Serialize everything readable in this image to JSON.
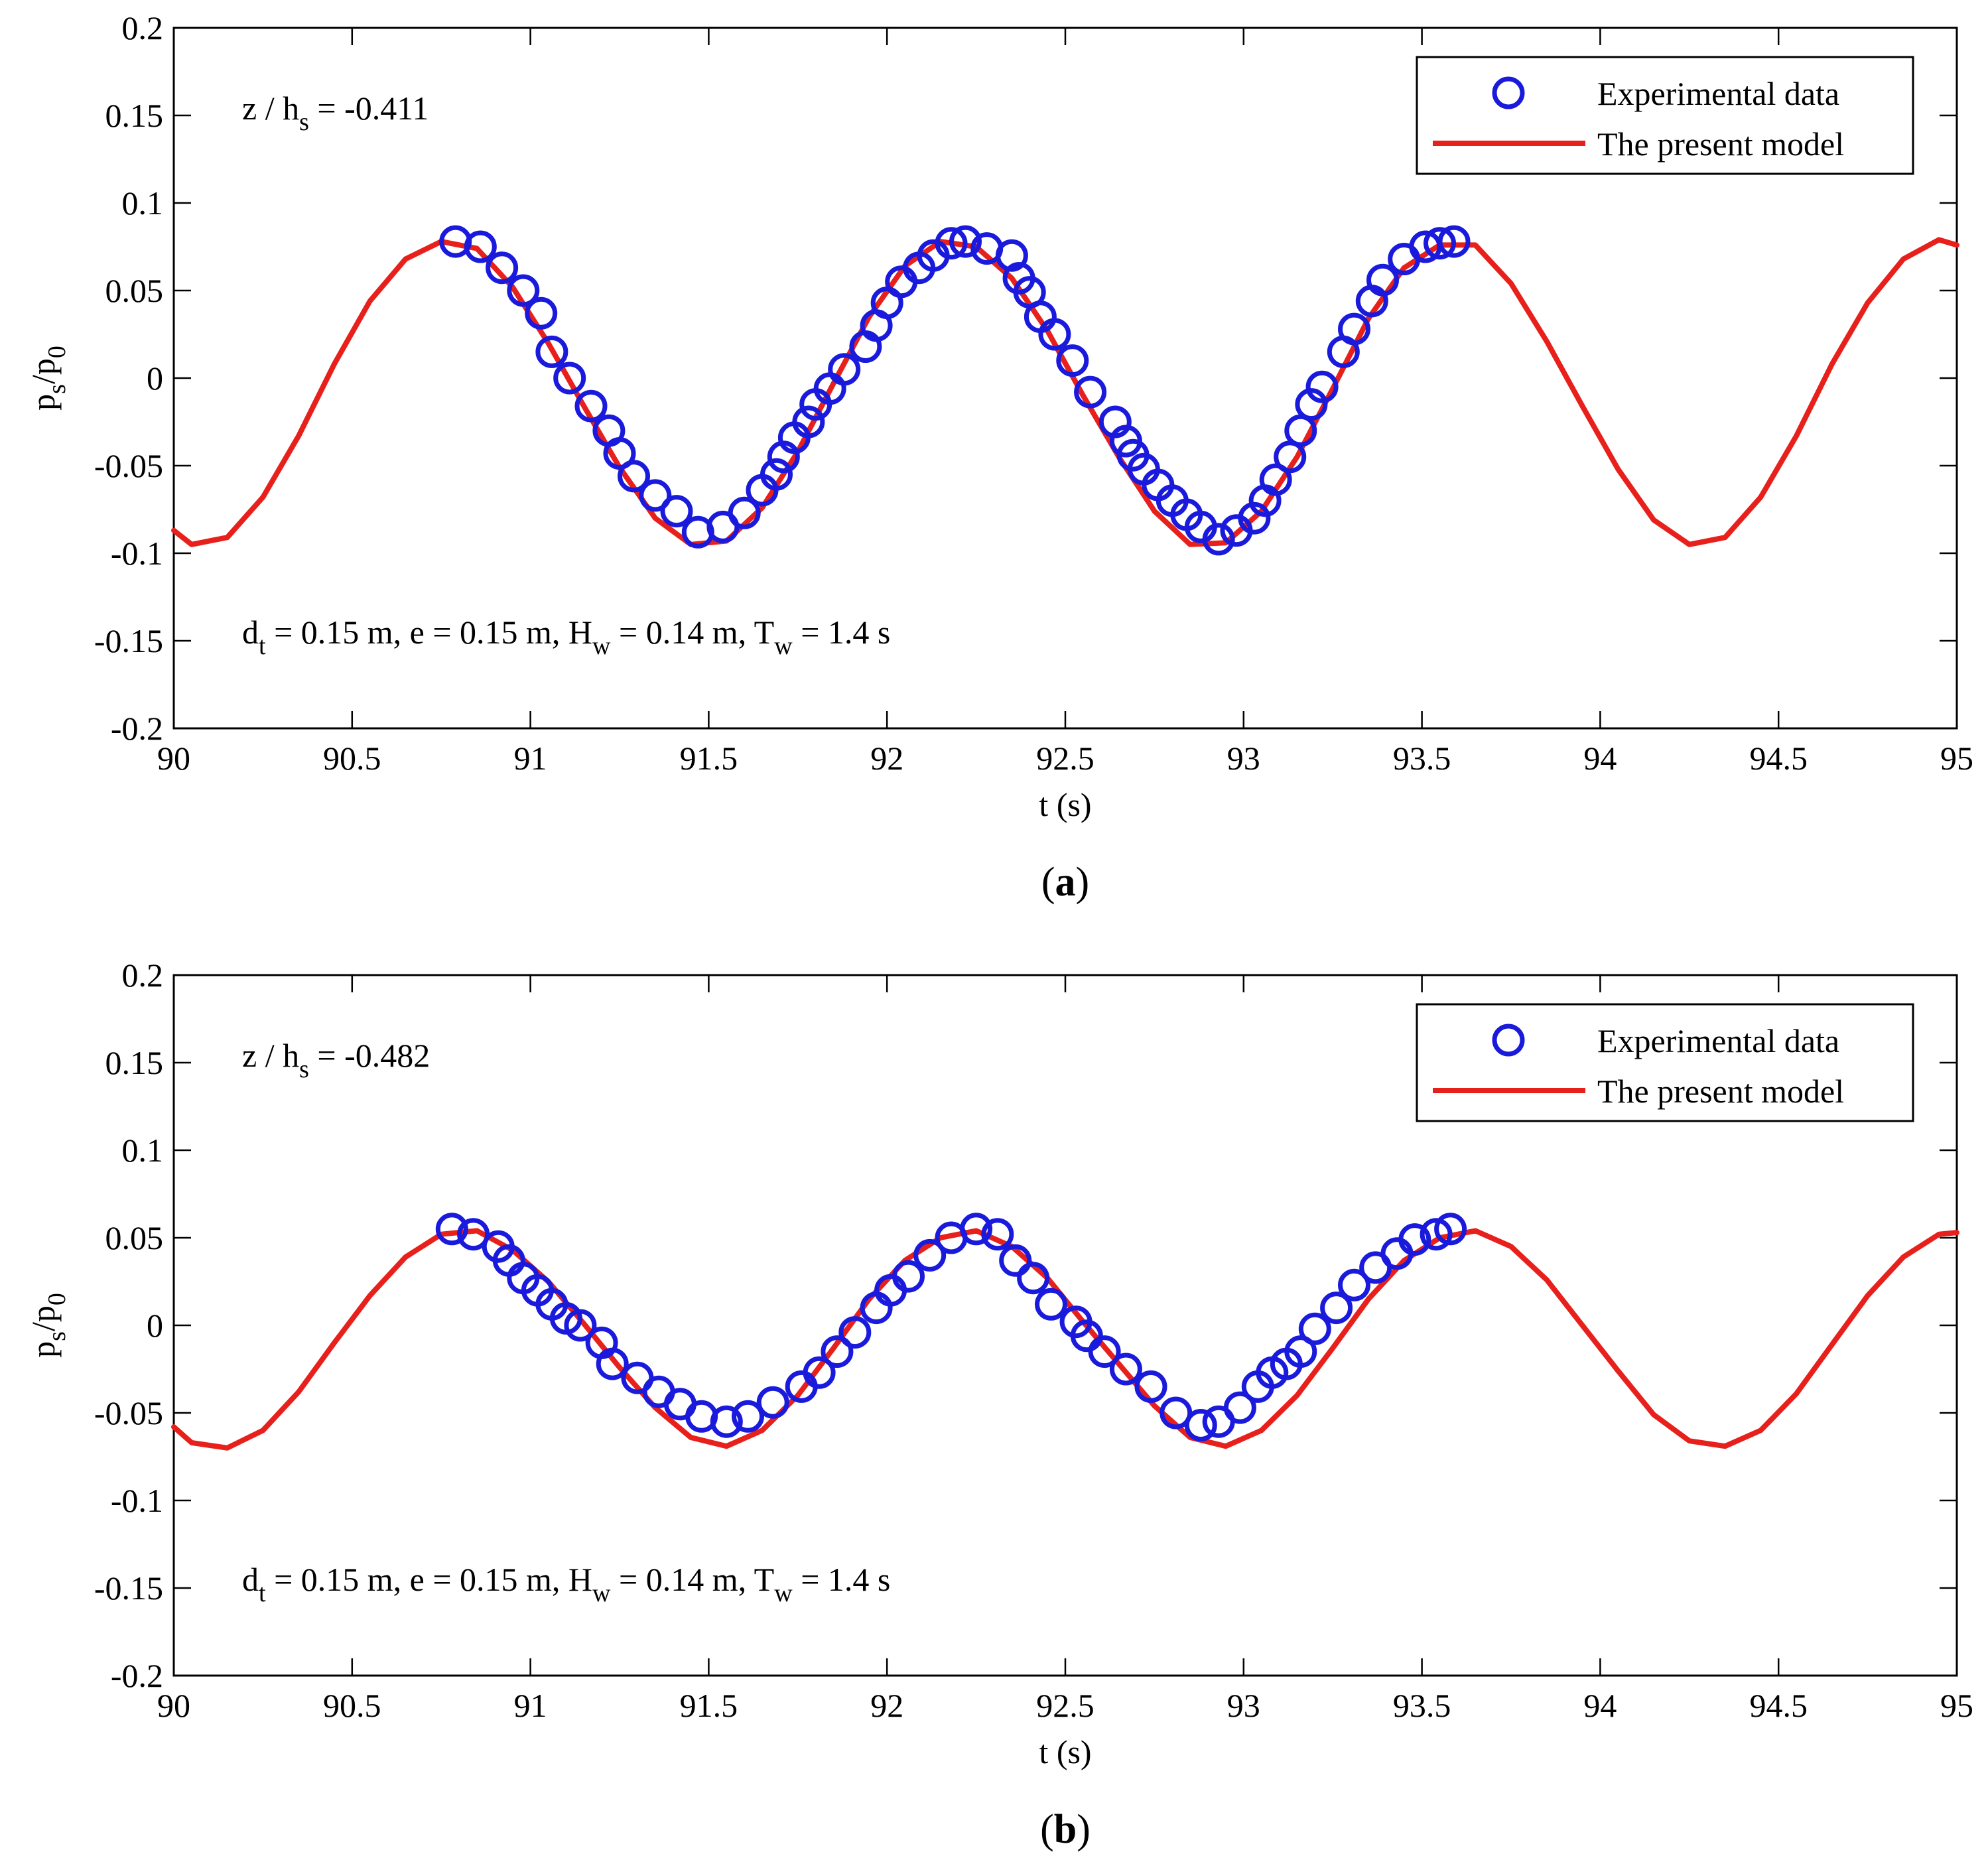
{
  "figure": {
    "xlabel": "t (s)",
    "ylabel_main": "p",
    "ylabel_sub1": "s",
    "ylabel_mid": "/p",
    "ylabel_sub2": "0",
    "xticks": [
      "90",
      "90.5",
      "91",
      "91.5",
      "92",
      "92.5",
      "93",
      "93.5",
      "94",
      "94.5",
      "95"
    ],
    "yticks": [
      "0.2",
      "0.15",
      "0.1",
      "0.05",
      "0",
      "-0.05",
      "-0.1",
      "-0.15",
      "-0.2"
    ],
    "legend": {
      "experimental": "Experimental data",
      "model": "The present model"
    },
    "colors": {
      "marker": "#1a1adc",
      "line": "#e8201c"
    },
    "params": {
      "d": "d",
      "d_sub": "t",
      "d_rest": " = 0.15 m, e = 0.15 m, H",
      "H_sub": "w",
      "H_rest": " = 0.14 m, T",
      "T_sub": "w",
      "T_rest": " = 1.4 s"
    }
  },
  "chart_data": [
    {
      "type": "line",
      "panel_label_open": "(",
      "panel_label": "a",
      "panel_label_close": ")",
      "depth_label_main": "z / h",
      "depth_label_sub": "s",
      "depth_label_value": " = -0.411",
      "xlabel": "t (s)",
      "ylabel": "ps/p0",
      "xlim": [
        90,
        95
      ],
      "ylim": [
        -0.2,
        0.2
      ],
      "series": [
        {
          "name": "The present model",
          "kind": "line",
          "x": [
            90.0,
            90.05,
            90.15,
            90.25,
            90.35,
            90.45,
            90.55,
            90.65,
            90.75,
            90.85,
            90.95,
            91.05,
            91.15,
            91.25,
            91.35,
            91.45,
            91.55,
            91.65,
            91.75,
            91.85,
            91.95,
            92.05,
            92.15,
            92.25,
            92.35,
            92.45,
            92.55,
            92.65,
            92.75,
            92.85,
            92.95,
            93.05,
            93.15,
            93.25,
            93.35,
            93.45,
            93.55,
            93.65,
            93.75,
            93.85,
            93.95,
            94.05,
            94.15,
            94.25,
            94.35,
            94.45,
            94.55,
            94.65,
            94.75,
            94.85,
            94.95,
            95.0
          ],
          "y": [
            -0.087,
            -0.095,
            -0.091,
            -0.068,
            -0.033,
            0.008,
            0.044,
            0.068,
            0.078,
            0.074,
            0.052,
            0.02,
            -0.016,
            -0.051,
            -0.08,
            -0.095,
            -0.093,
            -0.074,
            -0.042,
            -0.003,
            0.035,
            0.064,
            0.078,
            0.075,
            0.057,
            0.027,
            -0.01,
            -0.045,
            -0.076,
            -0.095,
            -0.094,
            -0.076,
            -0.045,
            -0.006,
            0.034,
            0.063,
            0.076,
            0.076,
            0.054,
            0.021,
            -0.016,
            -0.052,
            -0.081,
            -0.095,
            -0.091,
            -0.068,
            -0.033,
            0.008,
            0.043,
            0.068,
            0.079,
            0.076
          ]
        },
        {
          "name": "Experimental data",
          "kind": "markers",
          "x": [
            90.79,
            90.86,
            90.92,
            90.98,
            91.03,
            91.06,
            91.11,
            91.17,
            91.22,
            91.25,
            91.29,
            91.35,
            91.41,
            91.47,
            91.54,
            91.6,
            91.65,
            91.69,
            91.71,
            91.74,
            91.78,
            91.8,
            91.84,
            91.88,
            91.94,
            91.97,
            92.0,
            92.04,
            92.09,
            92.13,
            92.18,
            92.22,
            92.28,
            92.35,
            92.37,
            92.4,
            92.43,
            92.47,
            92.52,
            92.57,
            92.64,
            92.67,
            92.69,
            92.72,
            92.76,
            92.8,
            92.84,
            92.88,
            92.93,
            92.98,
            93.03,
            93.06,
            93.09,
            93.13,
            93.16,
            93.19,
            93.22,
            93.28,
            93.31,
            93.36,
            93.39,
            93.45,
            93.51,
            93.55,
            93.59
          ],
          "y": [
            0.078,
            0.075,
            0.063,
            0.05,
            0.037,
            0.015,
            0.0,
            -0.016,
            -0.03,
            -0.043,
            -0.056,
            -0.067,
            -0.076,
            -0.088,
            -0.085,
            -0.077,
            -0.064,
            -0.055,
            -0.045,
            -0.034,
            -0.025,
            -0.015,
            -0.006,
            0.005,
            0.018,
            0.03,
            0.043,
            0.055,
            0.063,
            0.07,
            0.077,
            0.078,
            0.074,
            0.07,
            0.057,
            0.049,
            0.035,
            0.025,
            0.01,
            -0.008,
            -0.025,
            -0.036,
            -0.044,
            -0.052,
            -0.061,
            -0.07,
            -0.078,
            -0.085,
            -0.092,
            -0.087,
            -0.08,
            -0.07,
            -0.058,
            -0.045,
            -0.03,
            -0.015,
            -0.005,
            0.015,
            0.028,
            0.044,
            0.056,
            0.068,
            0.075,
            0.077,
            0.078
          ]
        }
      ]
    },
    {
      "type": "line",
      "panel_label_open": "(",
      "panel_label": "b",
      "panel_label_close": ")",
      "depth_label_main": "z / h",
      "depth_label_sub": "s",
      "depth_label_value": " = -0.482",
      "xlabel": "t (s)",
      "ylabel": "ps/p0",
      "xlim": [
        90,
        95
      ],
      "ylim": [
        -0.2,
        0.2
      ],
      "series": [
        {
          "name": "The present model",
          "kind": "line",
          "x": [
            90.0,
            90.05,
            90.15,
            90.25,
            90.35,
            90.45,
            90.55,
            90.65,
            90.75,
            90.85,
            90.95,
            91.05,
            91.15,
            91.25,
            91.35,
            91.45,
            91.55,
            91.65,
            91.75,
            91.85,
            91.95,
            92.05,
            92.15,
            92.25,
            92.35,
            92.45,
            92.55,
            92.65,
            92.75,
            92.85,
            92.95,
            93.05,
            93.15,
            93.25,
            93.35,
            93.45,
            93.55,
            93.65,
            93.75,
            93.85,
            93.95,
            94.05,
            94.15,
            94.25,
            94.35,
            94.45,
            94.55,
            94.65,
            94.75,
            94.85,
            94.95,
            95.0
          ],
          "y": [
            -0.058,
            -0.067,
            -0.07,
            -0.06,
            -0.038,
            -0.01,
            0.017,
            0.039,
            0.052,
            0.054,
            0.043,
            0.025,
            0.001,
            -0.024,
            -0.047,
            -0.064,
            -0.069,
            -0.06,
            -0.04,
            -0.013,
            0.015,
            0.037,
            0.05,
            0.054,
            0.045,
            0.027,
            0.002,
            -0.022,
            -0.046,
            -0.064,
            -0.069,
            -0.06,
            -0.04,
            -0.013,
            0.015,
            0.037,
            0.05,
            0.054,
            0.045,
            0.026,
            0.0,
            -0.026,
            -0.051,
            -0.066,
            -0.069,
            -0.06,
            -0.039,
            -0.011,
            0.017,
            0.039,
            0.052,
            0.053
          ]
        },
        {
          "name": "Experimental data",
          "kind": "markers",
          "x": [
            90.78,
            90.84,
            90.91,
            90.94,
            90.98,
            91.02,
            91.06,
            91.1,
            91.14,
            91.2,
            91.23,
            91.3,
            91.36,
            91.42,
            91.48,
            91.55,
            91.61,
            91.68,
            91.76,
            91.81,
            91.86,
            91.91,
            91.97,
            92.01,
            92.06,
            92.12,
            92.18,
            92.25,
            92.31,
            92.36,
            92.41,
            92.46,
            92.53,
            92.56,
            92.61,
            92.67,
            92.74,
            92.81,
            92.88,
            92.93,
            92.99,
            93.04,
            93.08,
            93.12,
            93.16,
            93.2,
            93.26,
            93.31,
            93.37,
            93.43,
            93.48,
            93.54,
            93.58
          ],
          "y": [
            0.055,
            0.052,
            0.045,
            0.037,
            0.027,
            0.02,
            0.012,
            0.004,
            0.0,
            -0.01,
            -0.022,
            -0.03,
            -0.038,
            -0.045,
            -0.052,
            -0.055,
            -0.052,
            -0.044,
            -0.035,
            -0.027,
            -0.015,
            -0.004,
            0.01,
            0.02,
            0.028,
            0.04,
            0.05,
            0.055,
            0.052,
            0.037,
            0.027,
            0.012,
            0.002,
            -0.006,
            -0.015,
            -0.025,
            -0.035,
            -0.05,
            -0.057,
            -0.055,
            -0.047,
            -0.035,
            -0.027,
            -0.022,
            -0.015,
            -0.002,
            0.01,
            0.023,
            0.033,
            0.041,
            0.049,
            0.052,
            0.055
          ]
        }
      ]
    }
  ]
}
